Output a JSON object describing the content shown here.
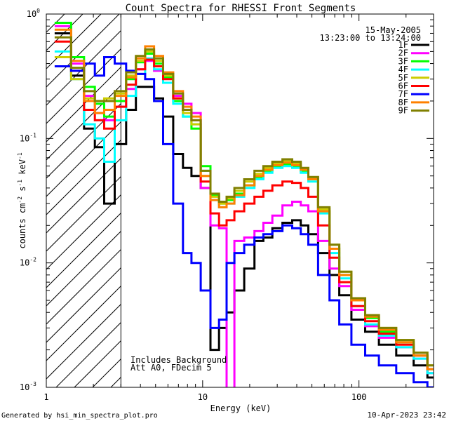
{
  "chart_data": {
    "type": "line",
    "title": "Count Spectra for RHESSI Front Segments",
    "date_label": "15-May-2005",
    "time_label": "13:23:00 to 13:24:00",
    "xlabel": "Energy (keV)",
    "ylabel_parts": [
      "counts cm",
      "-2",
      " s",
      "-1",
      " keV",
      "-1"
    ],
    "x_scale": "log",
    "y_scale": "log",
    "xlim": [
      1,
      300
    ],
    "ylim": [
      0.001,
      1
    ],
    "x_ticks": [
      {
        "v": 1,
        "label": "1"
      },
      {
        "v": 10,
        "label": "10"
      },
      {
        "v": 100,
        "label": "100"
      }
    ],
    "y_ticks": [
      {
        "v": 0.001,
        "label": "10",
        "exp": "-3"
      },
      {
        "v": 0.01,
        "label": "10",
        "exp": "-2"
      },
      {
        "v": 0.1,
        "label": "10",
        "exp": "-1"
      },
      {
        "v": 1,
        "label": "10",
        "exp": "0"
      }
    ],
    "hatch_region_x": [
      1,
      3
    ],
    "notes": [
      "Includes Background",
      "Att A0, FDecim 5"
    ],
    "footer_left": "Generated by hsi_min_spectra_plot.pro",
    "footer_right": "10-Apr-2023 23:42",
    "series": [
      {
        "name": "1F",
        "color": "#000000",
        "x": [
          1.3,
          1.6,
          1.9,
          2.2,
          2.5,
          3.0,
          3.5,
          4.0,
          4.6,
          5.2,
          6.0,
          7.0,
          8.0,
          9.0,
          10.5,
          12.0,
          13.5,
          15.0,
          17.0,
          20.0,
          23.0,
          26.0,
          30.0,
          35.0,
          40.0,
          45.0,
          50.0,
          60.0,
          70.0,
          80.0,
          100.0,
          120.0,
          150.0,
          200.0,
          250.0,
          300.0
        ],
        "y": [
          0.7,
          0.32,
          0.12,
          0.085,
          0.03,
          0.09,
          0.17,
          0.26,
          0.26,
          0.21,
          0.15,
          0.075,
          0.058,
          0.05,
          0.04,
          0.002,
          0.003,
          0.004,
          0.006,
          0.009,
          0.015,
          0.016,
          0.019,
          0.021,
          0.022,
          0.02,
          0.017,
          0.012,
          0.008,
          0.0055,
          0.0035,
          0.0028,
          0.0022,
          0.0018,
          0.0015,
          0.0012
        ]
      },
      {
        "name": "2F",
        "color": "#ff00ff",
        "x": [
          1.3,
          1.6,
          1.9,
          2.2,
          2.5,
          3.0,
          3.5,
          4.0,
          4.6,
          5.2,
          6.0,
          7.0,
          8.0,
          9.0,
          10.5,
          12.0,
          13.5,
          15.0,
          17.0,
          20.0,
          23.0,
          26.0,
          30.0,
          35.0,
          40.0,
          45.0,
          50.0,
          60.0,
          70.0,
          80.0,
          100.0,
          120.0,
          150.0,
          200.0,
          250.0,
          300.0
        ],
        "y": [
          0.8,
          0.4,
          0.22,
          0.16,
          0.14,
          0.18,
          0.25,
          0.36,
          0.42,
          0.35,
          0.28,
          0.22,
          0.19,
          0.16,
          0.04,
          0.02,
          0.019,
          0.0009,
          0.015,
          0.016,
          0.018,
          0.021,
          0.024,
          0.029,
          0.031,
          0.029,
          0.026,
          0.015,
          0.009,
          0.0065,
          0.0042,
          0.0031,
          0.0025,
          0.0021,
          0.0017,
          0.0013
        ]
      },
      {
        "name": "3F",
        "color": "#00ff00",
        "x": [
          1.3,
          1.6,
          1.9,
          2.2,
          2.5,
          3.0,
          3.5,
          4.0,
          4.6,
          5.2,
          6.0,
          7.0,
          8.0,
          9.0,
          10.5,
          12.0,
          13.5,
          15.0,
          17.0,
          20.0,
          23.0,
          26.0,
          30.0,
          35.0,
          40.0,
          45.0,
          50.0,
          60.0,
          70.0,
          80.0,
          100.0,
          120.0,
          150.0,
          200.0,
          250.0,
          300.0
        ],
        "y": [
          0.85,
          0.45,
          0.26,
          0.19,
          0.15,
          0.2,
          0.3,
          0.41,
          0.48,
          0.4,
          0.31,
          0.2,
          0.15,
          0.12,
          0.06,
          0.035,
          0.03,
          0.032,
          0.036,
          0.042,
          0.048,
          0.055,
          0.06,
          0.062,
          0.06,
          0.055,
          0.047,
          0.026,
          0.013,
          0.008,
          0.005,
          0.0036,
          0.0028,
          0.0023,
          0.0018,
          0.0014
        ]
      },
      {
        "name": "4F",
        "color": "#00ffff",
        "x": [
          1.3,
          1.6,
          1.9,
          2.2,
          2.5,
          3.0,
          3.5,
          4.0,
          4.6,
          5.2,
          6.0,
          7.0,
          8.0,
          9.0,
          10.5,
          12.0,
          13.5,
          15.0,
          17.0,
          20.0,
          23.0,
          26.0,
          30.0,
          35.0,
          40.0,
          45.0,
          50.0,
          60.0,
          70.0,
          80.0,
          100.0,
          120.0,
          150.0,
          200.0,
          250.0,
          300.0
        ],
        "y": [
          0.5,
          0.3,
          0.13,
          0.1,
          0.065,
          0.14,
          0.22,
          0.33,
          0.44,
          0.36,
          0.28,
          0.19,
          0.15,
          0.13,
          0.055,
          0.032,
          0.028,
          0.03,
          0.034,
          0.04,
          0.047,
          0.053,
          0.058,
          0.06,
          0.058,
          0.053,
          0.045,
          0.025,
          0.012,
          0.0075,
          0.0045,
          0.0032,
          0.0026,
          0.0021,
          0.0017,
          0.0013
        ]
      },
      {
        "name": "5F",
        "color": "#cccc00",
        "x": [
          1.3,
          1.6,
          1.9,
          2.2,
          2.5,
          3.0,
          3.5,
          4.0,
          4.6,
          5.2,
          6.0,
          7.0,
          8.0,
          9.0,
          10.5,
          12.0,
          13.5,
          15.0,
          17.0,
          20.0,
          23.0,
          26.0,
          30.0,
          35.0,
          40.0,
          45.0,
          50.0,
          60.0,
          70.0,
          80.0,
          100.0,
          120.0,
          150.0,
          200.0,
          250.0,
          300.0
        ],
        "y": [
          0.45,
          0.3,
          0.21,
          0.2,
          0.21,
          0.23,
          0.32,
          0.42,
          0.5,
          0.42,
          0.32,
          0.21,
          0.16,
          0.13,
          0.05,
          0.034,
          0.03,
          0.033,
          0.038,
          0.045,
          0.052,
          0.058,
          0.063,
          0.066,
          0.063,
          0.057,
          0.048,
          0.027,
          0.014,
          0.0085,
          0.0052,
          0.0038,
          0.003,
          0.0024,
          0.0019,
          0.0015
        ]
      },
      {
        "name": "6F",
        "color": "#ff0000",
        "x": [
          1.3,
          1.6,
          1.9,
          2.2,
          2.5,
          3.0,
          3.5,
          4.0,
          4.6,
          5.2,
          6.0,
          7.0,
          8.0,
          9.0,
          10.5,
          12.0,
          13.5,
          15.0,
          17.0,
          20.0,
          23.0,
          26.0,
          30.0,
          35.0,
          40.0,
          45.0,
          50.0,
          60.0,
          70.0,
          80.0,
          100.0,
          120.0,
          150.0,
          200.0,
          250.0,
          300.0
        ],
        "y": [
          0.6,
          0.35,
          0.17,
          0.14,
          0.12,
          0.18,
          0.27,
          0.36,
          0.43,
          0.38,
          0.3,
          0.21,
          0.17,
          0.14,
          0.045,
          0.025,
          0.02,
          0.022,
          0.026,
          0.03,
          0.034,
          0.038,
          0.042,
          0.045,
          0.044,
          0.04,
          0.034,
          0.02,
          0.011,
          0.007,
          0.0045,
          0.0034,
          0.0027,
          0.0022,
          0.0018,
          0.0014
        ]
      },
      {
        "name": "7F",
        "color": "#0000ff",
        "x": [
          1.3,
          1.6,
          1.9,
          2.2,
          2.5,
          3.0,
          3.5,
          4.0,
          4.6,
          5.2,
          6.0,
          7.0,
          8.0,
          9.0,
          10.5,
          12.0,
          13.5,
          15.0,
          17.0,
          20.0,
          23.0,
          26.0,
          30.0,
          35.0,
          40.0,
          45.0,
          50.0,
          60.0,
          70.0,
          80.0,
          100.0,
          120.0,
          150.0,
          200.0,
          250.0,
          300.0
        ],
        "y": [
          0.38,
          0.35,
          0.4,
          0.32,
          0.45,
          0.4,
          0.35,
          0.33,
          0.3,
          0.2,
          0.09,
          0.03,
          0.012,
          0.01,
          0.006,
          0.003,
          0.0035,
          0.01,
          0.012,
          0.014,
          0.016,
          0.017,
          0.018,
          0.02,
          0.019,
          0.017,
          0.014,
          0.008,
          0.005,
          0.0032,
          0.0022,
          0.0018,
          0.0015,
          0.0013,
          0.0011,
          0.001
        ]
      },
      {
        "name": "8F",
        "color": "#ff8000",
        "x": [
          1.3,
          1.6,
          1.9,
          2.2,
          2.5,
          3.0,
          3.5,
          4.0,
          4.6,
          5.2,
          6.0,
          7.0,
          8.0,
          9.0,
          10.5,
          12.0,
          13.5,
          15.0,
          17.0,
          20.0,
          23.0,
          26.0,
          30.0,
          35.0,
          40.0,
          45.0,
          50.0,
          60.0,
          70.0,
          80.0,
          100.0,
          120.0,
          150.0,
          200.0,
          250.0,
          300.0
        ],
        "y": [
          0.75,
          0.42,
          0.2,
          0.16,
          0.17,
          0.22,
          0.31,
          0.44,
          0.55,
          0.46,
          0.34,
          0.24,
          0.18,
          0.15,
          0.05,
          0.032,
          0.028,
          0.03,
          0.035,
          0.042,
          0.05,
          0.056,
          0.061,
          0.064,
          0.061,
          0.056,
          0.047,
          0.026,
          0.013,
          0.008,
          0.005,
          0.0037,
          0.0029,
          0.0023,
          0.0018,
          0.0014
        ]
      },
      {
        "name": "9F",
        "color": "#808000",
        "x": [
          1.3,
          1.6,
          1.9,
          2.2,
          2.5,
          3.0,
          3.5,
          4.0,
          4.6,
          5.2,
          6.0,
          7.0,
          8.0,
          9.0,
          10.5,
          12.0,
          13.5,
          15.0,
          17.0,
          20.0,
          23.0,
          26.0,
          30.0,
          35.0,
          40.0,
          45.0,
          50.0,
          60.0,
          70.0,
          80.0,
          100.0,
          120.0,
          150.0,
          200.0,
          250.0,
          300.0
        ],
        "y": [
          0.65,
          0.37,
          0.24,
          0.2,
          0.2,
          0.24,
          0.34,
          0.46,
          0.52,
          0.44,
          0.33,
          0.23,
          0.17,
          0.14,
          0.055,
          0.036,
          0.031,
          0.034,
          0.04,
          0.047,
          0.055,
          0.06,
          0.065,
          0.068,
          0.065,
          0.058,
          0.049,
          0.028,
          0.014,
          0.0085,
          0.0052,
          0.0038,
          0.003,
          0.0024,
          0.0019,
          0.0015
        ]
      }
    ]
  }
}
